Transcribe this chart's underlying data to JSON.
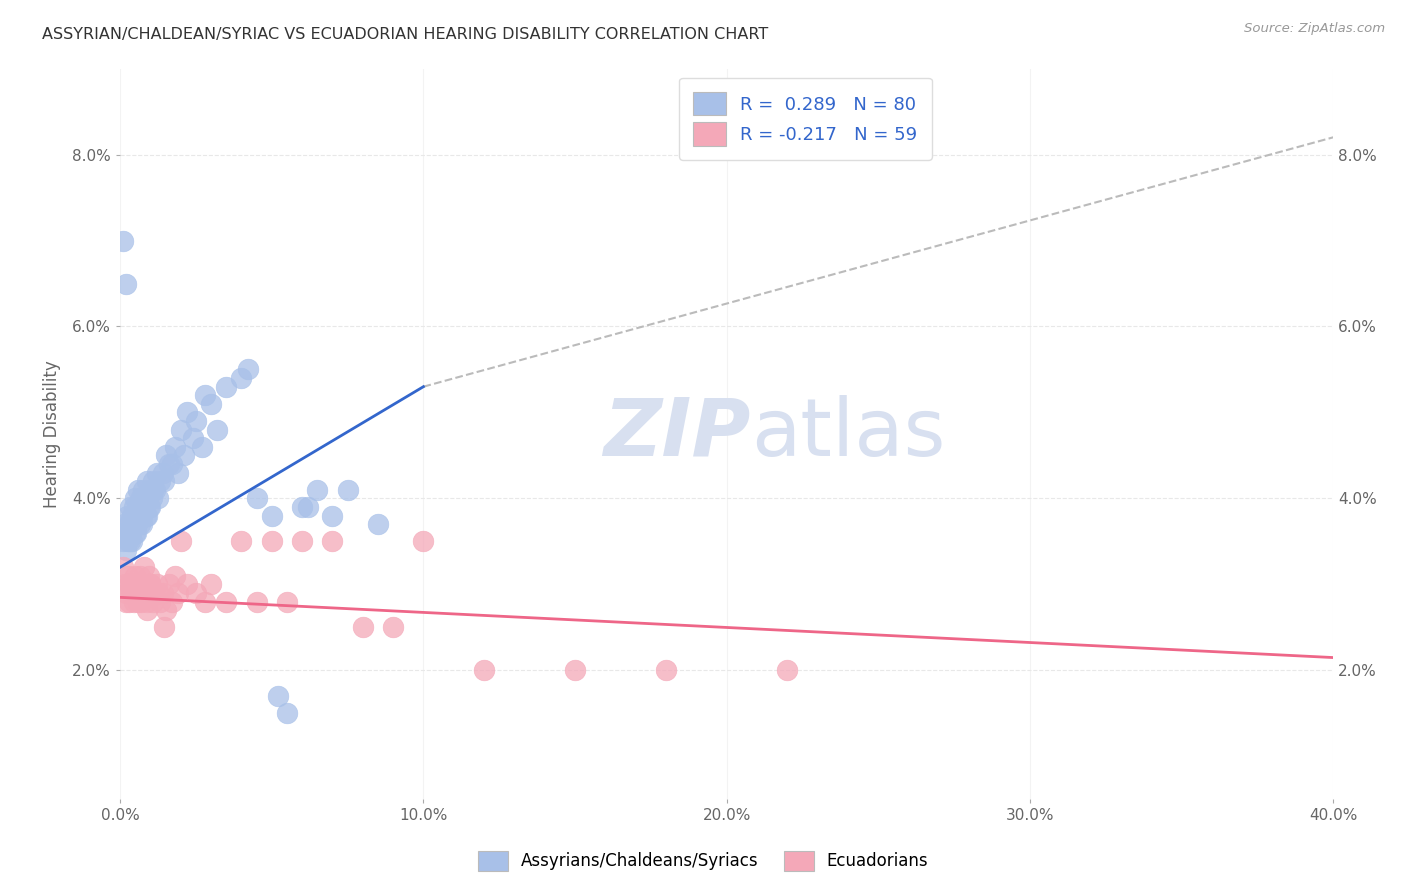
{
  "title": "ASSYRIAN/CHALDEAN/SYRIAC VS ECUADORIAN HEARING DISABILITY CORRELATION CHART",
  "source": "Source: ZipAtlas.com",
  "ylabel": "Hearing Disability",
  "blue_R": 0.289,
  "blue_N": 80,
  "pink_R": -0.217,
  "pink_N": 59,
  "blue_color": "#A8C0E8",
  "pink_color": "#F4A8B8",
  "blue_line_color": "#3366CC",
  "pink_line_color": "#EE6688",
  "dashed_line_color": "#BBBBBB",
  "background_color": "#FFFFFF",
  "grid_color": "#E8E8E8",
  "watermark_text": "ZIPatlas",
  "watermark_color": "#D8E0F0",
  "blue_scatter_x": [
    0.08,
    0.12,
    0.15,
    0.2,
    0.22,
    0.25,
    0.28,
    0.3,
    0.32,
    0.35,
    0.38,
    0.4,
    0.42,
    0.45,
    0.48,
    0.5,
    0.52,
    0.55,
    0.58,
    0.6,
    0.62,
    0.65,
    0.68,
    0.7,
    0.72,
    0.75,
    0.78,
    0.8,
    0.85,
    0.9,
    0.95,
    1.0,
    1.05,
    1.1,
    1.15,
    1.2,
    1.3,
    1.4,
    1.5,
    1.6,
    1.8,
    2.0,
    2.2,
    2.5,
    2.8,
    3.0,
    3.5,
    4.0,
    4.5,
    5.0,
    5.5,
    6.0,
    6.5,
    7.0,
    0.1,
    0.18,
    0.23,
    0.33,
    0.43,
    0.53,
    0.63,
    0.73,
    0.83,
    0.88,
    0.93,
    0.98,
    1.08,
    1.25,
    1.45,
    1.7,
    1.9,
    2.1,
    2.4,
    2.7,
    3.2,
    4.2,
    5.2,
    6.2,
    7.5,
    8.5
  ],
  "blue_scatter_y": [
    3.5,
    3.7,
    3.6,
    3.4,
    3.8,
    3.5,
    3.6,
    3.7,
    3.9,
    3.6,
    3.5,
    3.8,
    3.7,
    3.9,
    3.6,
    4.0,
    3.8,
    3.7,
    3.9,
    4.1,
    3.8,
    3.7,
    4.0,
    3.9,
    3.8,
    4.1,
    3.9,
    4.0,
    3.8,
    4.2,
    3.9,
    4.1,
    4.0,
    4.2,
    4.1,
    4.3,
    4.2,
    4.3,
    4.5,
    4.4,
    4.6,
    4.8,
    5.0,
    4.9,
    5.2,
    5.1,
    5.3,
    5.4,
    4.0,
    3.8,
    1.5,
    3.9,
    4.1,
    3.8,
    7.0,
    6.5,
    3.6,
    3.5,
    3.7,
    3.6,
    3.8,
    3.7,
    3.9,
    3.8,
    4.0,
    3.9,
    4.1,
    4.0,
    4.2,
    4.4,
    4.3,
    4.5,
    4.7,
    4.6,
    4.8,
    5.5,
    1.7,
    3.9,
    4.1,
    3.7
  ],
  "pink_scatter_x": [
    0.08,
    0.15,
    0.2,
    0.25,
    0.3,
    0.35,
    0.4,
    0.45,
    0.5,
    0.55,
    0.6,
    0.65,
    0.7,
    0.75,
    0.8,
    0.85,
    0.9,
    0.95,
    1.0,
    1.1,
    1.2,
    1.3,
    1.4,
    1.5,
    1.6,
    1.7,
    1.8,
    1.9,
    2.0,
    2.2,
    2.5,
    2.8,
    3.0,
    3.5,
    4.0,
    4.5,
    5.0,
    5.5,
    6.0,
    7.0,
    8.0,
    9.0,
    10.0,
    12.0,
    15.0,
    18.0,
    22.0,
    0.18,
    0.28,
    0.38,
    0.48,
    0.58,
    0.68,
    0.78,
    0.88,
    0.98,
    1.08,
    1.25,
    1.45
  ],
  "pink_scatter_y": [
    3.2,
    3.0,
    2.9,
    3.1,
    2.8,
    3.0,
    2.9,
    2.8,
    3.1,
    3.0,
    2.9,
    3.1,
    2.8,
    3.0,
    3.2,
    2.9,
    2.8,
    3.1,
    3.0,
    2.9,
    3.0,
    2.8,
    2.9,
    2.7,
    3.0,
    2.8,
    3.1,
    2.9,
    3.5,
    3.0,
    2.9,
    2.8,
    3.0,
    2.8,
    3.5,
    2.8,
    3.5,
    2.8,
    3.5,
    3.5,
    2.5,
    2.5,
    3.5,
    2.0,
    2.0,
    2.0,
    2.0,
    2.8,
    3.0,
    2.9,
    3.0,
    2.8,
    3.0,
    2.9,
    2.7,
    3.0,
    2.8,
    2.9,
    2.5
  ],
  "xlim": [
    0.0,
    40.0
  ],
  "ylim": [
    0.5,
    9.0
  ],
  "blue_line_x": [
    0.0,
    40.0
  ],
  "blue_line_y": [
    3.2,
    8.2
  ],
  "pink_line_x": [
    0.0,
    40.0
  ],
  "pink_line_y": [
    2.85,
    2.15
  ],
  "dashed_line_x": [
    0.0,
    40.0
  ],
  "dashed_line_y": [
    3.2,
    8.2
  ],
  "xtick_vals": [
    0,
    10,
    20,
    30,
    40
  ],
  "ytick_vals": [
    2,
    4,
    6,
    8
  ],
  "legend_blue_label": "R =  0.289   N = 80",
  "legend_pink_label": "R = -0.217   N = 59",
  "bottom_legend_1": "Assyrians/Chaldeans/Syriacs",
  "bottom_legend_2": "Ecuadorians"
}
